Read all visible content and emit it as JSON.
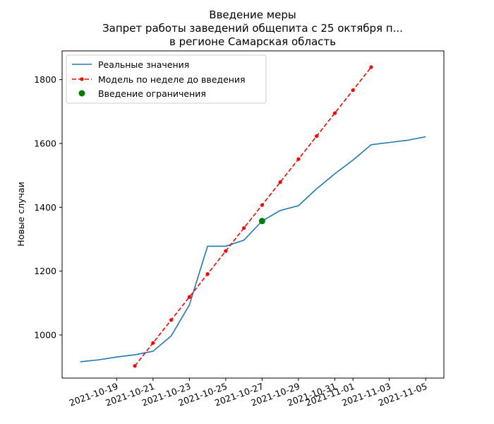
{
  "chart_data": {
    "type": "line",
    "title": [
      "Введение меры",
      "Запрет работы заведений общепита с 25 октября п...",
      "в регионе Самарская область"
    ],
    "xlabel": "",
    "ylabel": "Новые случаи",
    "xlim": [
      "2021-10-16",
      "2021-11-06"
    ],
    "ylim": [
      865,
      1890
    ],
    "x_ticks": [
      "2021-10-19",
      "2021-10-21",
      "2021-10-23",
      "2021-10-25",
      "2021-10-27",
      "2021-10-29",
      "2021-10-31",
      "2021-11-01",
      "2021-11-03",
      "2021-11-05"
    ],
    "y_ticks": [
      1000,
      1200,
      1400,
      1600,
      1800
    ],
    "grid": false,
    "legend_position": "top-left",
    "series": [
      {
        "name": "Реальные значения",
        "style": "solid line",
        "color": "#1f77b4",
        "points": [
          {
            "x": "2021-10-17",
            "y": 916
          },
          {
            "x": "2021-10-18",
            "y": 922
          },
          {
            "x": "2021-10-19",
            "y": 931
          },
          {
            "x": "2021-10-20",
            "y": 938
          },
          {
            "x": "2021-10-21",
            "y": 949
          },
          {
            "x": "2021-10-22",
            "y": 997
          },
          {
            "x": "2021-10-23",
            "y": 1094
          },
          {
            "x": "2021-10-24",
            "y": 1278
          },
          {
            "x": "2021-10-25",
            "y": 1278
          },
          {
            "x": "2021-10-26",
            "y": 1297
          },
          {
            "x": "2021-10-27",
            "y": 1357
          },
          {
            "x": "2021-10-28",
            "y": 1390
          },
          {
            "x": "2021-10-29",
            "y": 1405
          },
          {
            "x": "2021-10-30",
            "y": 1458
          },
          {
            "x": "2021-10-31",
            "y": 1505
          },
          {
            "x": "2021-11-01",
            "y": 1548
          },
          {
            "x": "2021-11-02",
            "y": 1596
          },
          {
            "x": "2021-11-03",
            "y": 1603
          },
          {
            "x": "2021-11-04",
            "y": 1610
          },
          {
            "x": "2021-11-05",
            "y": 1621
          }
        ]
      },
      {
        "name": "Модель по неделе до введения",
        "style": "dashed line with dot markers",
        "color": "#ff0000",
        "points": [
          {
            "x": "2021-10-20",
            "y": 903
          },
          {
            "x": "2021-10-21",
            "y": 975
          },
          {
            "x": "2021-10-22",
            "y": 1047
          },
          {
            "x": "2021-10-23",
            "y": 1119
          },
          {
            "x": "2021-10-24",
            "y": 1191
          },
          {
            "x": "2021-10-25",
            "y": 1263
          },
          {
            "x": "2021-10-26",
            "y": 1335
          },
          {
            "x": "2021-10-27",
            "y": 1407
          },
          {
            "x": "2021-10-28",
            "y": 1479
          },
          {
            "x": "2021-10-29",
            "y": 1551
          },
          {
            "x": "2021-10-30",
            "y": 1623
          },
          {
            "x": "2021-10-31",
            "y": 1695
          },
          {
            "x": "2021-11-01",
            "y": 1767
          },
          {
            "x": "2021-11-02",
            "y": 1839
          }
        ]
      },
      {
        "name": "Введение ограничения",
        "style": "single marker",
        "color": "#008000",
        "points": [
          {
            "x": "2021-10-27",
            "y": 1357
          }
        ]
      }
    ]
  }
}
